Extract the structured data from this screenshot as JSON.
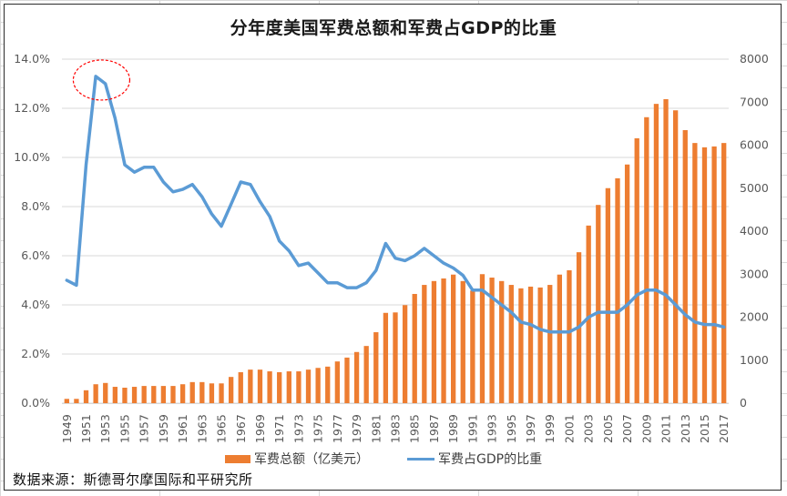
{
  "chart_data": {
    "type": "bar+line",
    "title": "分年度美国军费总额和军费占GDP的比重",
    "categories": [
      "1949",
      "1950",
      "1951",
      "1952",
      "1953",
      "1954",
      "1955",
      "1956",
      "1957",
      "1958",
      "1959",
      "1960",
      "1961",
      "1962",
      "1963",
      "1964",
      "1965",
      "1966",
      "1967",
      "1968",
      "1969",
      "1970",
      "1971",
      "1972",
      "1973",
      "1974",
      "1975",
      "1976",
      "1977",
      "1978",
      "1979",
      "1980",
      "1981",
      "1982",
      "1983",
      "1984",
      "1985",
      "1986",
      "1987",
      "1988",
      "1989",
      "1990",
      "1991",
      "1992",
      "1993",
      "1994",
      "1995",
      "1996",
      "1997",
      "1998",
      "1999",
      "2000",
      "2001",
      "2002",
      "2003",
      "2004",
      "2005",
      "2006",
      "2007",
      "2008",
      "2009",
      "2010",
      "2011",
      "2012",
      "2013",
      "2014",
      "2015",
      "2016",
      "2017"
    ],
    "x_tick_labels": [
      "1949",
      "1951",
      "1953",
      "1955",
      "1957",
      "1959",
      "1961",
      "1963",
      "1965",
      "1967",
      "1969",
      "1971",
      "1973",
      "1975",
      "1977",
      "1979",
      "1981",
      "1983",
      "1985",
      "1987",
      "1989",
      "1991",
      "1993",
      "1995",
      "1997",
      "1999",
      "2001",
      "2003",
      "2005",
      "2007",
      "2009",
      "2011",
      "2013",
      "2015",
      "2017"
    ],
    "series": [
      {
        "name": "军费总额（亿美元）",
        "type": "bar",
        "axis": "right",
        "color": "#ed7d31",
        "values": [
          100,
          100,
          300,
          440,
          470,
          380,
          360,
          380,
          400,
          400,
          400,
          400,
          440,
          490,
          490,
          460,
          460,
          610,
          720,
          780,
          780,
          740,
          720,
          740,
          740,
          780,
          820,
          850,
          970,
          1060,
          1190,
          1330,
          1650,
          2100,
          2110,
          2280,
          2540,
          2750,
          2840,
          2900,
          2990,
          2840,
          2620,
          3000,
          2920,
          2840,
          2750,
          2670,
          2710,
          2690,
          2750,
          2990,
          3090,
          3510,
          4130,
          4610,
          5000,
          5230,
          5550,
          6160,
          6650,
          6960,
          7070,
          6810,
          6350,
          6050,
          5950,
          5970,
          6050
        ]
      },
      {
        "name": "军费占GDP的比重",
        "type": "line",
        "axis": "left",
        "color": "#5b9bd5",
        "values": [
          5.0,
          4.8,
          9.7,
          13.3,
          13.0,
          11.6,
          9.7,
          9.4,
          9.6,
          9.6,
          9.0,
          8.6,
          8.7,
          8.9,
          8.4,
          7.7,
          7.2,
          8.1,
          9.0,
          8.9,
          8.2,
          7.6,
          6.6,
          6.2,
          5.6,
          5.7,
          5.3,
          4.9,
          4.9,
          4.7,
          4.7,
          4.9,
          5.4,
          6.5,
          5.9,
          5.8,
          6.0,
          6.3,
          6.0,
          5.7,
          5.5,
          5.2,
          4.6,
          4.6,
          4.3,
          4.0,
          3.7,
          3.3,
          3.2,
          3.0,
          2.9,
          2.9,
          2.9,
          3.1,
          3.5,
          3.7,
          3.7,
          3.7,
          4.0,
          4.4,
          4.6,
          4.6,
          4.4,
          4.0,
          3.6,
          3.3,
          3.2,
          3.2,
          3.1
        ]
      }
    ],
    "y_left": {
      "ylim": [
        0,
        14
      ],
      "ticks": [
        "0.0%",
        "2.0%",
        "4.0%",
        "6.0%",
        "8.0%",
        "10.0%",
        "12.0%",
        "14.0%"
      ]
    },
    "y_right": {
      "ylim": [
        0,
        8000
      ],
      "ticks": [
        "0",
        "1000",
        "2000",
        "3000",
        "4000",
        "5000",
        "6000",
        "7000",
        "8000"
      ]
    },
    "grid": true,
    "legend_position": "bottom",
    "annotation": {
      "type": "dashed-ellipse",
      "color": "#ff0000",
      "target_years": [
        "1952",
        "1953"
      ]
    }
  },
  "legend": {
    "bar_label": "军费总额（亿美元）",
    "line_label": "军费占GDP的比重"
  },
  "source": "数据来源：斯德哥尔摩国际和平研究所"
}
